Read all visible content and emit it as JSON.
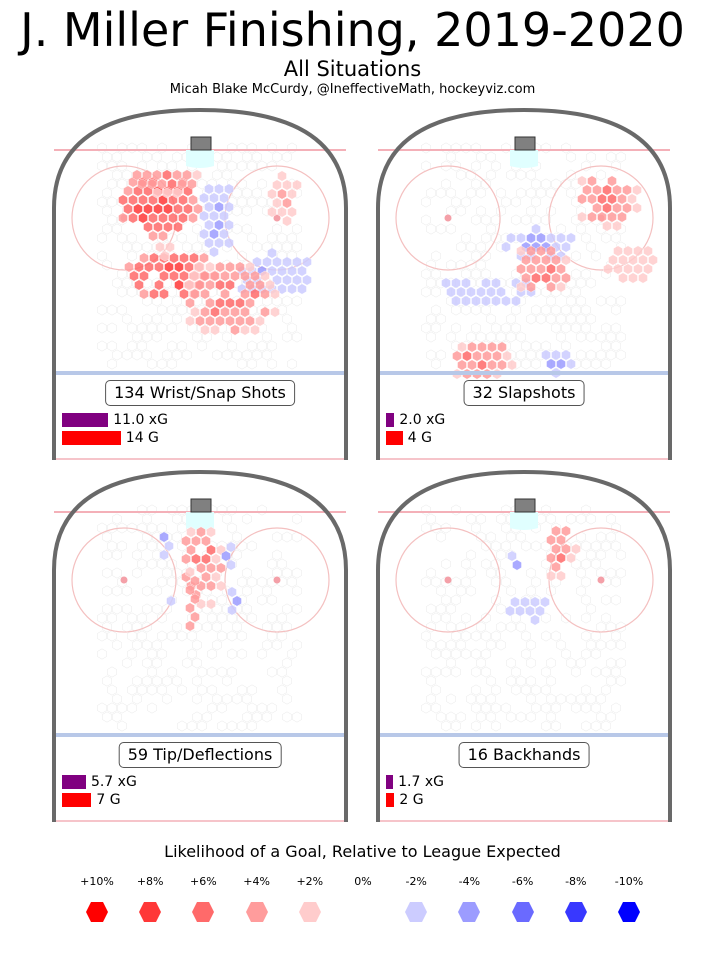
{
  "header": {
    "title": "J. Miller Finishing, 2019-2020",
    "subtitle": "All Situations",
    "credit": "Micah Blake McCurdy, @IneffectiveMath, hockeyviz.com"
  },
  "colors": {
    "xg_bar": "#800080",
    "goal_bar": "#ff0000",
    "boards": "#696969",
    "goal_line": "#f4b0b8",
    "blue_line": "#b8c8e8",
    "faceoff_circle": "#f4c0c0",
    "crease": "#e0ffff",
    "net": "#808080"
  },
  "panels": [
    {
      "label": "134 Wrist/Snap Shots",
      "xg_label": "11.0 xG",
      "goals_label": "14 G"
    },
    {
      "label": "32 Slapshots",
      "xg_label": "2.0 xG",
      "goals_label": "4 G"
    },
    {
      "label": "59 Tip/Deflections",
      "xg_label": "5.7 xG",
      "goals_label": "7 G"
    },
    {
      "label": "16 Backhands",
      "xg_label": "1.7 xG",
      "goals_label": "2 G"
    }
  ],
  "legend": {
    "title": "Likelihood of a Goal, Relative to League Expected",
    "items": [
      {
        "label": "+10%",
        "color": "#ff0000"
      },
      {
        "label": "+8%",
        "color": "#ff3838"
      },
      {
        "label": "+6%",
        "color": "#ff6a6a"
      },
      {
        "label": "+4%",
        "color": "#ff9c9c"
      },
      {
        "label": "+2%",
        "color": "#ffcccc"
      },
      {
        "label": "0%",
        "color": "#ffffff"
      },
      {
        "label": "-2%",
        "color": "#ccccff"
      },
      {
        "label": "-4%",
        "color": "#9c9cff"
      },
      {
        "label": "-6%",
        "color": "#6a6aff"
      },
      {
        "label": "-8%",
        "color": "#3838ff"
      },
      {
        "label": "-10%",
        "color": "#0000ff"
      }
    ]
  },
  "chart_data": [
    {
      "type": "heatmap",
      "title": "134 Wrist/Snap Shots",
      "shots": 134,
      "expected_goals": 11.0,
      "goals": 14,
      "units": "likelihood of a goal relative to league expected (%)",
      "regions": [
        {
          "zone": "left faceoff circle",
          "relative": 6
        },
        {
          "zone": "slot",
          "relative": -2
        },
        {
          "zone": "right faceoff circle",
          "relative": 2
        },
        {
          "zone": "right point side",
          "relative": -2
        },
        {
          "zone": "left high slot",
          "relative": 6
        },
        {
          "zone": "center high slot",
          "relative": 4
        }
      ]
    },
    {
      "type": "heatmap",
      "title": "32 Slapshots",
      "shots": 32,
      "expected_goals": 2.0,
      "goals": 4,
      "units": "likelihood of a goal relative to league expected (%)",
      "regions": [
        {
          "zone": "right faceoff circle",
          "relative": 4
        },
        {
          "zone": "right boards",
          "relative": 2
        },
        {
          "zone": "slot",
          "relative": -2
        },
        {
          "zone": "left circle top",
          "relative": -2
        },
        {
          "zone": "center high slot",
          "relative": 4
        },
        {
          "zone": "left point",
          "relative": 4
        }
      ]
    },
    {
      "type": "heatmap",
      "title": "59 Tip/Deflections",
      "shots": 59,
      "expected_goals": 5.7,
      "goals": 7,
      "units": "likelihood of a goal relative to league expected (%)",
      "regions": [
        {
          "zone": "crease",
          "relative": -2
        },
        {
          "zone": "slot",
          "relative": 4
        },
        {
          "zone": "right of slot",
          "relative": -2
        }
      ]
    },
    {
      "type": "heatmap",
      "title": "16 Backhands",
      "shots": 16,
      "expected_goals": 1.7,
      "goals": 2,
      "units": "likelihood of a goal relative to league expected (%)",
      "regions": [
        {
          "zone": "right of crease",
          "relative": 4
        },
        {
          "zone": "crease",
          "relative": -2
        },
        {
          "zone": "slot",
          "relative": -2
        }
      ]
    }
  ]
}
